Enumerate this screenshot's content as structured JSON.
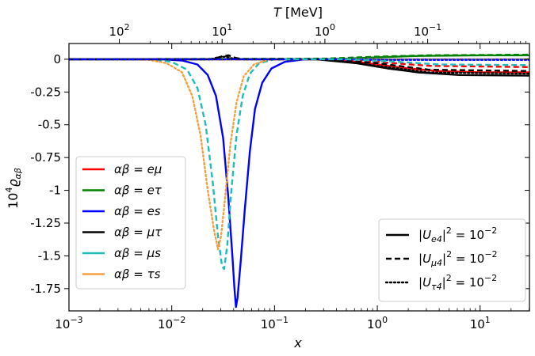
{
  "chart_data": {
    "type": "line",
    "x_scale": "log",
    "xlim_exp": [
      -3,
      1.48
    ],
    "ylim": [
      -1.92,
      0.12
    ],
    "xlabel": "x",
    "top_xlabel": "T [MeV]",
    "ylabel": "10^4 ϱ_αβ",
    "bottom_ticks": [
      {
        "exp": -3,
        "base": "10",
        "sup": "−3"
      },
      {
        "exp": -2,
        "base": "10",
        "sup": "−2"
      },
      {
        "exp": -1,
        "base": "10",
        "sup": "−1"
      },
      {
        "exp": 0,
        "base": "10",
        "sup": "0"
      },
      {
        "exp": 1,
        "base": "10",
        "sup": "1"
      }
    ],
    "top_ticks": [
      {
        "x_exp": -2.51,
        "base": "10",
        "sup": "2"
      },
      {
        "x_exp": -1.51,
        "base": "10",
        "sup": "1"
      },
      {
        "x_exp": -0.51,
        "base": "10",
        "sup": "0"
      },
      {
        "x_exp": 0.49,
        "base": "10",
        "sup": "−1"
      }
    ],
    "y_ticks": [
      {
        "value": 0,
        "label": "0"
      },
      {
        "value": -0.25,
        "label": "-0.25"
      },
      {
        "value": -0.5,
        "label": "-0.5"
      },
      {
        "value": -0.75,
        "label": "-0.75"
      },
      {
        "value": -1.0,
        "label": "-1"
      },
      {
        "value": -1.25,
        "label": "-1.25"
      },
      {
        "value": -1.5,
        "label": "-1.5"
      },
      {
        "value": -1.75,
        "label": "-1.75"
      }
    ],
    "series": [
      {
        "name": "αβ = eμ",
        "color": "#ff0000",
        "dash": "solid",
        "points": [
          [
            -3,
            0
          ],
          [
            -0.6,
            0
          ],
          [
            -0.2,
            -0.02
          ],
          [
            0,
            -0.04
          ],
          [
            0.3,
            -0.07
          ],
          [
            0.6,
            -0.09
          ],
          [
            1,
            -0.1
          ],
          [
            1.48,
            -0.1
          ]
        ]
      },
      {
        "name": "αβ = eτ",
        "color": "#008000",
        "dash": "solid",
        "points": [
          [
            -3,
            0
          ],
          [
            -0.6,
            0
          ],
          [
            -0.3,
            0.005
          ],
          [
            0,
            0.015
          ],
          [
            0.4,
            0.025
          ],
          [
            1,
            0.03
          ],
          [
            1.48,
            0.03
          ]
        ]
      },
      {
        "name": "αβ = es",
        "color": "#0000ff",
        "dash": "solid",
        "points": [
          [
            -3,
            0
          ],
          [
            -2.1,
            0
          ],
          [
            -1.9,
            -0.01
          ],
          [
            -1.75,
            -0.04
          ],
          [
            -1.65,
            -0.12
          ],
          [
            -1.57,
            -0.28
          ],
          [
            -1.5,
            -0.6
          ],
          [
            -1.45,
            -1.05
          ],
          [
            -1.41,
            -1.5
          ],
          [
            -1.39,
            -1.75
          ],
          [
            -1.375,
            -1.89
          ],
          [
            -1.36,
            -1.82
          ],
          [
            -1.33,
            -1.55
          ],
          [
            -1.29,
            -1.15
          ],
          [
            -1.24,
            -0.7
          ],
          [
            -1.19,
            -0.38
          ],
          [
            -1.12,
            -0.18
          ],
          [
            -1.03,
            -0.07
          ],
          [
            -0.9,
            -0.02
          ],
          [
            -0.7,
            0
          ],
          [
            -0.4,
            0
          ],
          [
            0,
            0
          ],
          [
            1.48,
            0
          ]
        ]
      },
      {
        "name": "αβ = μτ",
        "color": "#000000",
        "dash": "solid",
        "points": [
          [
            -3,
            0
          ],
          [
            -0.6,
            0
          ],
          [
            -0.2,
            -0.03
          ],
          [
            0.1,
            -0.07
          ],
          [
            0.4,
            -0.1
          ],
          [
            0.8,
            -0.12
          ],
          [
            1.48,
            -0.125
          ]
        ]
      },
      {
        "name": "αβ = μs",
        "color": "#22bbbb",
        "dash": "dashed",
        "points": [
          [
            -3,
            0
          ],
          [
            -2.2,
            0
          ],
          [
            -2.0,
            -0.02
          ],
          [
            -1.85,
            -0.08
          ],
          [
            -1.75,
            -0.22
          ],
          [
            -1.67,
            -0.5
          ],
          [
            -1.6,
            -0.95
          ],
          [
            -1.55,
            -1.35
          ],
          [
            -1.51,
            -1.58
          ],
          [
            -1.49,
            -1.6
          ],
          [
            -1.46,
            -1.42
          ],
          [
            -1.42,
            -1.0
          ],
          [
            -1.37,
            -0.58
          ],
          [
            -1.31,
            -0.28
          ],
          [
            -1.24,
            -0.11
          ],
          [
            -1.15,
            -0.03
          ],
          [
            -1.0,
            0
          ],
          [
            1.48,
            0
          ]
        ]
      },
      {
        "name": "αβ = τs",
        "color": "#f5a040",
        "dash": "dotted",
        "points": [
          [
            -3,
            0
          ],
          [
            -2.25,
            0
          ],
          [
            -2.05,
            -0.03
          ],
          [
            -1.9,
            -0.1
          ],
          [
            -1.8,
            -0.28
          ],
          [
            -1.72,
            -0.58
          ],
          [
            -1.65,
            -1.0
          ],
          [
            -1.59,
            -1.3
          ],
          [
            -1.55,
            -1.45
          ],
          [
            -1.52,
            -1.35
          ],
          [
            -1.48,
            -1.05
          ],
          [
            -1.43,
            -0.65
          ],
          [
            -1.37,
            -0.33
          ],
          [
            -1.3,
            -0.13
          ],
          [
            -1.2,
            -0.04
          ],
          [
            -1.05,
            0
          ],
          [
            1.48,
            0
          ]
        ]
      },
      {
        "name": "eμ dashed",
        "color": "#ff0000",
        "dash": "dashed",
        "points": [
          [
            -3,
            0
          ],
          [
            -0.5,
            0
          ],
          [
            0,
            -0.02
          ],
          [
            0.5,
            -0.05
          ],
          [
            1.48,
            -0.06
          ]
        ]
      },
      {
        "name": "eτ dashed",
        "color": "#008000",
        "dash": "dashed",
        "points": [
          [
            -3,
            0
          ],
          [
            -0.5,
            0.005
          ],
          [
            0,
            0.02
          ],
          [
            0.5,
            0.03
          ],
          [
            1.48,
            0.035
          ]
        ]
      },
      {
        "name": "μτ dashed",
        "color": "#000000",
        "dash": "dashed",
        "points": [
          [
            -3,
            0
          ],
          [
            -1.6,
            0
          ],
          [
            -1.52,
            0.02
          ],
          [
            -1.45,
            0.03
          ],
          [
            -1.38,
            0.01
          ],
          [
            -1.3,
            0
          ],
          [
            -0.5,
            0
          ],
          [
            0,
            -0.03
          ],
          [
            0.5,
            -0.08
          ],
          [
            1.48,
            -0.09
          ]
        ]
      },
      {
        "name": "μτ dotted",
        "color": "#000000",
        "dash": "dotted",
        "points": [
          [
            -3,
            0
          ],
          [
            -1.62,
            0
          ],
          [
            -1.55,
            0.015
          ],
          [
            -1.48,
            0.02
          ],
          [
            -1.4,
            0.005
          ],
          [
            -1.3,
            0
          ],
          [
            -0.5,
            0
          ],
          [
            0,
            -0.05
          ],
          [
            0.5,
            -0.1
          ],
          [
            1.48,
            -0.11
          ]
        ]
      },
      {
        "name": "es dotted",
        "color": "#0000ff",
        "dash": "dotted",
        "points": [
          [
            -3,
            0
          ],
          [
            -0.4,
            0
          ],
          [
            0,
            -0.005
          ],
          [
            1.48,
            -0.005
          ]
        ]
      },
      {
        "name": "μs dashed late",
        "color": "#22bbbb",
        "dash": "dashed",
        "points": [
          [
            -0.9,
            0
          ],
          [
            -0.3,
            0
          ],
          [
            0.2,
            -0.02
          ],
          [
            0.6,
            -0.04
          ],
          [
            1.48,
            -0.045
          ]
        ]
      }
    ],
    "legend_left": {
      "position": "lower-left",
      "entries": [
        {
          "prefix": "αβ = ",
          "label": "eμ",
          "color": "#ff0000"
        },
        {
          "prefix": "αβ = ",
          "label": "eτ",
          "color": "#008000"
        },
        {
          "prefix": "αβ = ",
          "label": "es",
          "color": "#0000ff"
        },
        {
          "prefix": "αβ = ",
          "label": "μτ",
          "color": "#000000"
        },
        {
          "prefix": "αβ = ",
          "label": "μs",
          "color": "#22bbbb"
        },
        {
          "prefix": "αβ = ",
          "label": "τs",
          "color": "#f5a040"
        }
      ]
    },
    "legend_right": {
      "position": "lower-right",
      "entries": [
        {
          "sub": "e4",
          "dash": "solid",
          "rhs_base": "10",
          "rhs_sup": "−2"
        },
        {
          "sub": "μ4",
          "dash": "dashed",
          "rhs_base": "10",
          "rhs_sup": "−2"
        },
        {
          "sub": "τ4",
          "dash": "dotted",
          "rhs_base": "10",
          "rhs_sup": "−2"
        }
      ]
    }
  }
}
